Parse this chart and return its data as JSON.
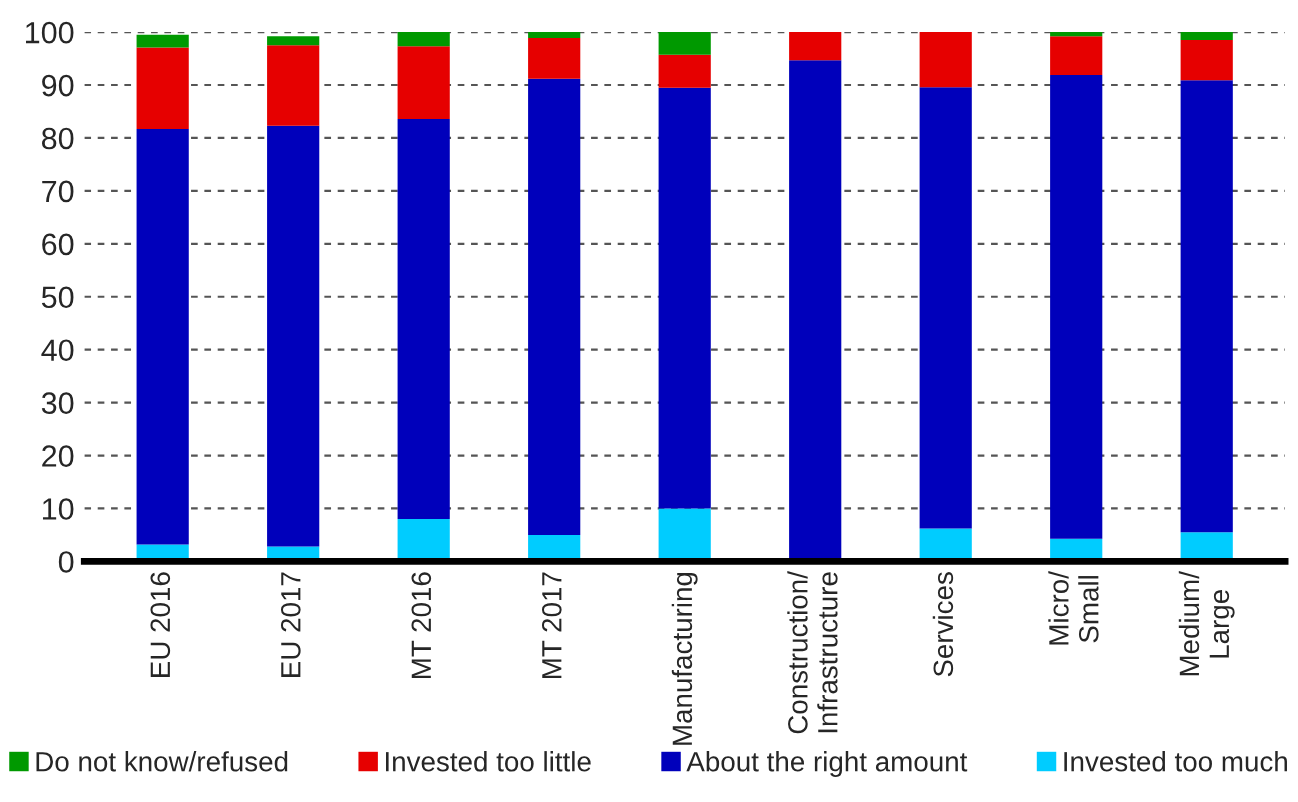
{
  "chart_data": {
    "type": "bar",
    "stacked": true,
    "categories": [
      "EU 2016",
      "EU 2017",
      "MT 2016",
      "MT 2017",
      "Manufacturing",
      "Construction/\nInfrastructure",
      "Services",
      "Micro/\nSmall",
      "Medium/\nLarge"
    ],
    "series": [
      {
        "name": "Invested too much",
        "color": "#00ccff",
        "values": [
          3.2,
          2.8,
          8.0,
          5.0,
          10.0,
          0,
          6.2,
          4.3,
          5.5
        ]
      },
      {
        "name": "About the right amount",
        "color": "#0000bb",
        "values": [
          78.5,
          79.5,
          75.6,
          86.2,
          79.5,
          94.7,
          83.4,
          87.6,
          85.4
        ]
      },
      {
        "name": "Invested too little",
        "color": "#e60000",
        "values": [
          15.4,
          15.2,
          13.7,
          7.7,
          6.2,
          5.3,
          10.4,
          7.3,
          7.6
        ]
      },
      {
        "name": "Do not know/refused",
        "color": "#009900",
        "values": [
          2.4,
          1.7,
          2.7,
          1.1,
          4.3,
          0,
          0,
          0.8,
          1.5
        ]
      }
    ],
    "ylim": [
      0,
      100
    ],
    "yticks": [
      0,
      10,
      20,
      30,
      40,
      50,
      60,
      70,
      80,
      90,
      100
    ],
    "grid": "y",
    "legend": "bottom"
  }
}
